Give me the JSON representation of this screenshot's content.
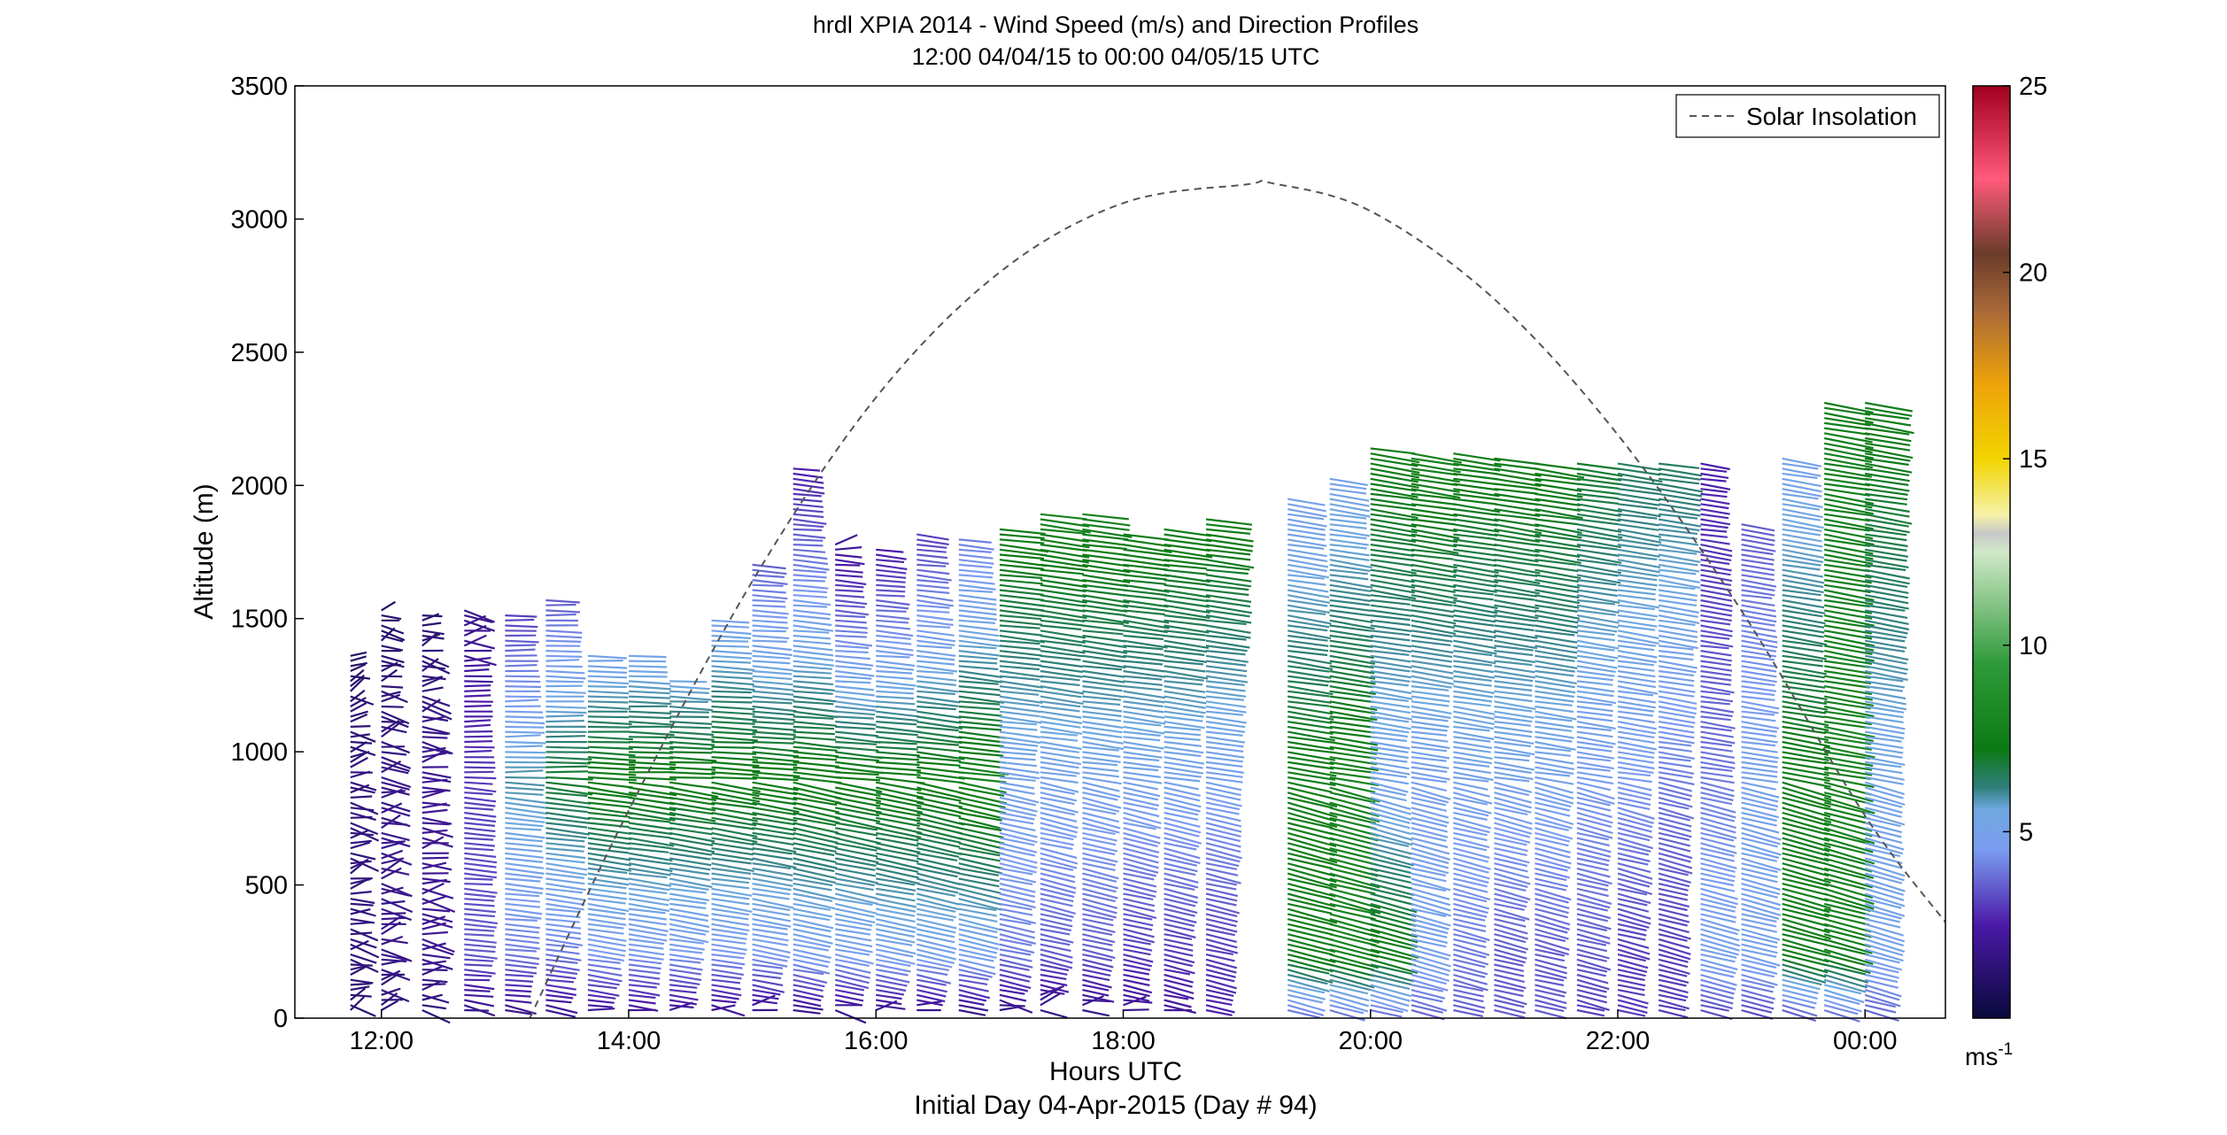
{
  "chart_data": {
    "type": "scatter",
    "subtype": "wind-barb-profile",
    "title": "hrdl XPIA 2014 - Wind Speed (m/s) and Direction Profiles",
    "subtitle": "12:00 04/04/15 to 00:00 04/05/15  UTC",
    "xlabel": "Hours UTC",
    "xlabel2": "Initial Day 04-Apr-2015 (Day # 94)",
    "ylabel": "Altitude (m)",
    "x_tick_labels": [
      "12:00",
      "14:00",
      "16:00",
      "18:00",
      "20:00",
      "22:00",
      "00:00"
    ],
    "x_tick_hours": [
      12,
      14,
      16,
      18,
      20,
      22,
      24
    ],
    "xlim_hours": [
      11.3,
      24.65
    ],
    "ylim": [
      0,
      3500
    ],
    "y_ticks": [
      0,
      500,
      1000,
      1500,
      2000,
      2500,
      3000,
      3500
    ],
    "grid": false,
    "legend": {
      "position": "top-right",
      "entries": [
        "Solar Insolation"
      ]
    },
    "colorbar": {
      "range": [
        0,
        25
      ],
      "ticks": [
        5,
        10,
        15,
        20,
        25
      ],
      "unit_base": "ms",
      "unit_exp": "-1",
      "stops": [
        {
          "v": 0,
          "c": "#0a0a3c"
        },
        {
          "v": 2.5,
          "c": "#4b1aa8"
        },
        {
          "v": 4.5,
          "c": "#7b9cf0"
        },
        {
          "v": 5.6,
          "c": "#6fa8e0"
        },
        {
          "v": 6.2,
          "c": "#2f7f7a"
        },
        {
          "v": 7.2,
          "c": "#0c7a14"
        },
        {
          "v": 9.5,
          "c": "#2f9a3a"
        },
        {
          "v": 12.5,
          "c": "#d0e8c8"
        },
        {
          "v": 13.0,
          "c": "#c8c8c8"
        },
        {
          "v": 13.5,
          "c": "#f6f2a8"
        },
        {
          "v": 15,
          "c": "#f2d400"
        },
        {
          "v": 17,
          "c": "#eea30a"
        },
        {
          "v": 19,
          "c": "#a86838"
        },
        {
          "v": 20.5,
          "c": "#6a3c2a"
        },
        {
          "v": 22.5,
          "c": "#ff5a7a"
        },
        {
          "v": 25,
          "c": "#a0001e"
        }
      ]
    },
    "solar_insolation": {
      "name": "Solar Insolation",
      "hours": [
        13.2,
        14.0,
        15.0,
        16.0,
        17.0,
        18.0,
        19.0,
        19.2,
        20.0,
        21.0,
        22.0,
        23.0,
        24.0,
        24.65
      ],
      "altitude": [
        0,
        780,
        1640,
        2330,
        2800,
        3060,
        3130,
        3135,
        3030,
        2700,
        2190,
        1530,
        760,
        360
      ]
    },
    "profiles": [
      {
        "hour": 11.75,
        "top": 1360,
        "surface_speed": 1.2,
        "low_speed": 1.5,
        "mid_speed": 1.5,
        "upper_speed": 1.0,
        "ramp": 0.0
      },
      {
        "hour": 12.0,
        "top": 1540,
        "surface_speed": 1.3,
        "low_speed": 1.8,
        "mid_speed": 1.8,
        "upper_speed": 1.0,
        "ramp": 0.0
      },
      {
        "hour": 12.33,
        "top": 1530,
        "surface_speed": 1.4,
        "low_speed": 2.0,
        "mid_speed": 2.0,
        "upper_speed": 1.2,
        "ramp": 0.2
      },
      {
        "hour": 12.67,
        "top": 1540,
        "surface_speed": 1.5,
        "low_speed": 3.5,
        "mid_speed": 3.0,
        "upper_speed": 1.8,
        "ramp": 0.2
      },
      {
        "hour": 13.0,
        "top": 1530,
        "surface_speed": 1.6,
        "low_speed": 4.0,
        "mid_speed": 6.0,
        "upper_speed": 3.0,
        "ramp": 0.3
      },
      {
        "hour": 13.33,
        "top": 1570,
        "surface_speed": 1.7,
        "low_speed": 4.0,
        "mid_speed": 7.0,
        "upper_speed": 3.5,
        "ramp": 0.4
      },
      {
        "hour": 13.67,
        "top": 1370,
        "surface_speed": 1.8,
        "low_speed": 4.5,
        "mid_speed": 7.5,
        "upper_speed": 5.0,
        "ramp": 0.5
      },
      {
        "hour": 14.0,
        "top": 1360,
        "surface_speed": 1.8,
        "low_speed": 4.5,
        "mid_speed": 7.5,
        "upper_speed": 5.2,
        "ramp": 0.5
      },
      {
        "hour": 14.33,
        "top": 1270,
        "surface_speed": 1.7,
        "low_speed": 4.5,
        "mid_speed": 7.5,
        "upper_speed": 5.5,
        "ramp": 0.6
      },
      {
        "hour": 14.67,
        "top": 1510,
        "surface_speed": 1.6,
        "low_speed": 4.5,
        "mid_speed": 7.5,
        "upper_speed": 5.0,
        "ramp": 0.6
      },
      {
        "hour": 15.0,
        "top": 1720,
        "surface_speed": 1.5,
        "low_speed": 4.5,
        "mid_speed": 7.5,
        "upper_speed": 3.5,
        "ramp": 0.7
      },
      {
        "hour": 15.33,
        "top": 2070,
        "surface_speed": 1.5,
        "low_speed": 4.8,
        "mid_speed": 7.5,
        "upper_speed": 2.5,
        "ramp": 0.8
      },
      {
        "hour": 15.67,
        "top": 1780,
        "surface_speed": 1.4,
        "low_speed": 4.8,
        "mid_speed": 7.5,
        "upper_speed": 2.0,
        "ramp": 0.8
      },
      {
        "hour": 16.0,
        "top": 1760,
        "surface_speed": 1.4,
        "low_speed": 5.0,
        "mid_speed": 7.5,
        "upper_speed": 2.5,
        "ramp": 0.8
      },
      {
        "hour": 16.33,
        "top": 1830,
        "surface_speed": 1.3,
        "low_speed": 5.0,
        "mid_speed": 7.5,
        "upper_speed": 3.0,
        "ramp": 0.9
      },
      {
        "hour": 16.67,
        "top": 1810,
        "surface_speed": 1.3,
        "low_speed": 5.0,
        "mid_speed": 7.8,
        "upper_speed": 4.0,
        "ramp": 0.9
      },
      {
        "hour": 17.0,
        "top": 1840,
        "surface_speed": 1.3,
        "low_speed": 4.0,
        "mid_speed": 5.0,
        "upper_speed": 7.5,
        "ramp": 0.9
      },
      {
        "hour": 17.33,
        "top": 1910,
        "surface_speed": 1.4,
        "low_speed": 3.5,
        "mid_speed": 5.0,
        "upper_speed": 7.8,
        "ramp": 1.0
      },
      {
        "hour": 17.67,
        "top": 1900,
        "surface_speed": 1.5,
        "low_speed": 3.5,
        "mid_speed": 5.0,
        "upper_speed": 7.8,
        "ramp": 1.0
      },
      {
        "hour": 18.0,
        "top": 1820,
        "surface_speed": 1.8,
        "low_speed": 3.0,
        "mid_speed": 5.0,
        "upper_speed": 7.5,
        "ramp": 1.0
      },
      {
        "hour": 18.33,
        "top": 1850,
        "surface_speed": 2.0,
        "low_speed": 3.0,
        "mid_speed": 5.0,
        "upper_speed": 7.5,
        "ramp": 1.0
      },
      {
        "hour": 18.67,
        "top": 1880,
        "surface_speed": 2.5,
        "low_speed": 3.0,
        "mid_speed": 4.8,
        "upper_speed": 7.5,
        "ramp": 1.0
      },
      {
        "hour": 19.33,
        "top": 1960,
        "surface_speed": 3.5,
        "low_speed": 7.5,
        "mid_speed": 7.5,
        "upper_speed": 4.8,
        "ramp": 1.1
      },
      {
        "hour": 19.67,
        "top": 2040,
        "surface_speed": 3.5,
        "low_speed": 7.8,
        "mid_speed": 7.8,
        "upper_speed": 5.0,
        "ramp": 1.1
      },
      {
        "hour": 20.0,
        "top": 2140,
        "surface_speed": 3.5,
        "low_speed": 7.5,
        "mid_speed": 5.0,
        "upper_speed": 7.5,
        "ramp": 1.1
      },
      {
        "hour": 20.33,
        "top": 2120,
        "surface_speed": 3.5,
        "low_speed": 5.0,
        "mid_speed": 4.8,
        "upper_speed": 7.8,
        "ramp": 1.1
      },
      {
        "hour": 20.67,
        "top": 2130,
        "surface_speed": 3.5,
        "low_speed": 4.0,
        "mid_speed": 5.0,
        "upper_speed": 7.5,
        "ramp": 1.1
      },
      {
        "hour": 21.0,
        "top": 2110,
        "surface_speed": 3.5,
        "low_speed": 3.5,
        "mid_speed": 5.0,
        "upper_speed": 7.5,
        "ramp": 1.1
      },
      {
        "hour": 21.33,
        "top": 2100,
        "surface_speed": 3.5,
        "low_speed": 3.5,
        "mid_speed": 5.0,
        "upper_speed": 7.5,
        "ramp": 1.1
      },
      {
        "hour": 21.67,
        "top": 2090,
        "surface_speed": 3.0,
        "low_speed": 3.5,
        "mid_speed": 4.5,
        "upper_speed": 7.0,
        "ramp": 1.1
      },
      {
        "hour": 22.0,
        "top": 2090,
        "surface_speed": 3.0,
        "low_speed": 3.0,
        "mid_speed": 4.5,
        "upper_speed": 6.5,
        "ramp": 1.1
      },
      {
        "hour": 22.33,
        "top": 2100,
        "surface_speed": 3.0,
        "low_speed": 3.0,
        "mid_speed": 4.0,
        "upper_speed": 6.5,
        "ramp": 1.1
      },
      {
        "hour": 22.67,
        "top": 2090,
        "surface_speed": 3.0,
        "low_speed": 5.0,
        "mid_speed": 4.0,
        "upper_speed": 2.5,
        "ramp": 1.1
      },
      {
        "hour": 23.0,
        "top": 1860,
        "surface_speed": 3.0,
        "low_speed": 5.0,
        "mid_speed": 5.0,
        "upper_speed": 3.5,
        "ramp": 1.1
      },
      {
        "hour": 23.33,
        "top": 2110,
        "surface_speed": 3.0,
        "low_speed": 7.5,
        "mid_speed": 7.5,
        "upper_speed": 5.0,
        "ramp": 1.2
      },
      {
        "hour": 23.67,
        "top": 2310,
        "surface_speed": 3.5,
        "low_speed": 7.5,
        "mid_speed": 7.8,
        "upper_speed": 7.5,
        "ramp": 1.2
      },
      {
        "hour": 24.0,
        "top": 2320,
        "surface_speed": 3.5,
        "low_speed": 5.0,
        "mid_speed": 5.2,
        "upper_speed": 7.5,
        "ramp": 1.2
      }
    ]
  }
}
